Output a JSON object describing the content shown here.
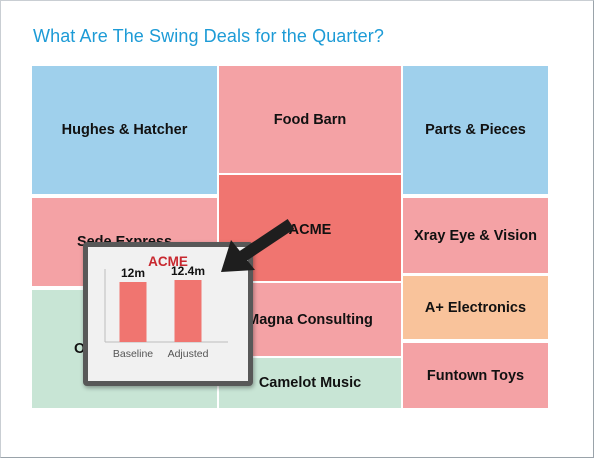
{
  "title": "What Are The Swing Deals for the Quarter?",
  "tiles": [
    {
      "label": "Hughes & Hatcher",
      "color": "#9fd0ec"
    },
    {
      "label": "Sede Express",
      "color": "#f4a2a5"
    },
    {
      "label": "Ocean Technology",
      "color": "#c8e5d5"
    },
    {
      "label": "Food Barn",
      "color": "#f4a2a5"
    },
    {
      "label": "ACME",
      "color": "#f07570"
    },
    {
      "label": "Magna Consulting",
      "color": "#f4a2a5"
    },
    {
      "label": "Camelot Music",
      "color": "#c8e5d5"
    },
    {
      "label": "Parts & Pieces",
      "color": "#9fd0ec"
    },
    {
      "label": "Xray Eye & Vision",
      "color": "#f4a2a5"
    },
    {
      "label": "A+ Electronics",
      "color": "#f9c39b"
    },
    {
      "label": "Funtown Toys",
      "color": "#f4a2a5"
    }
  ],
  "popup": {
    "title": "ACME",
    "bar_color": "#f07570",
    "title_color": "#c8282f"
  },
  "chart_data": {
    "type": "bar",
    "title": "ACME",
    "categories": [
      "Baseline",
      "Adjusted"
    ],
    "values": [
      12,
      12.4
    ],
    "data_labels": [
      "12m",
      "12.4m"
    ],
    "ylim": [
      0,
      14
    ]
  }
}
